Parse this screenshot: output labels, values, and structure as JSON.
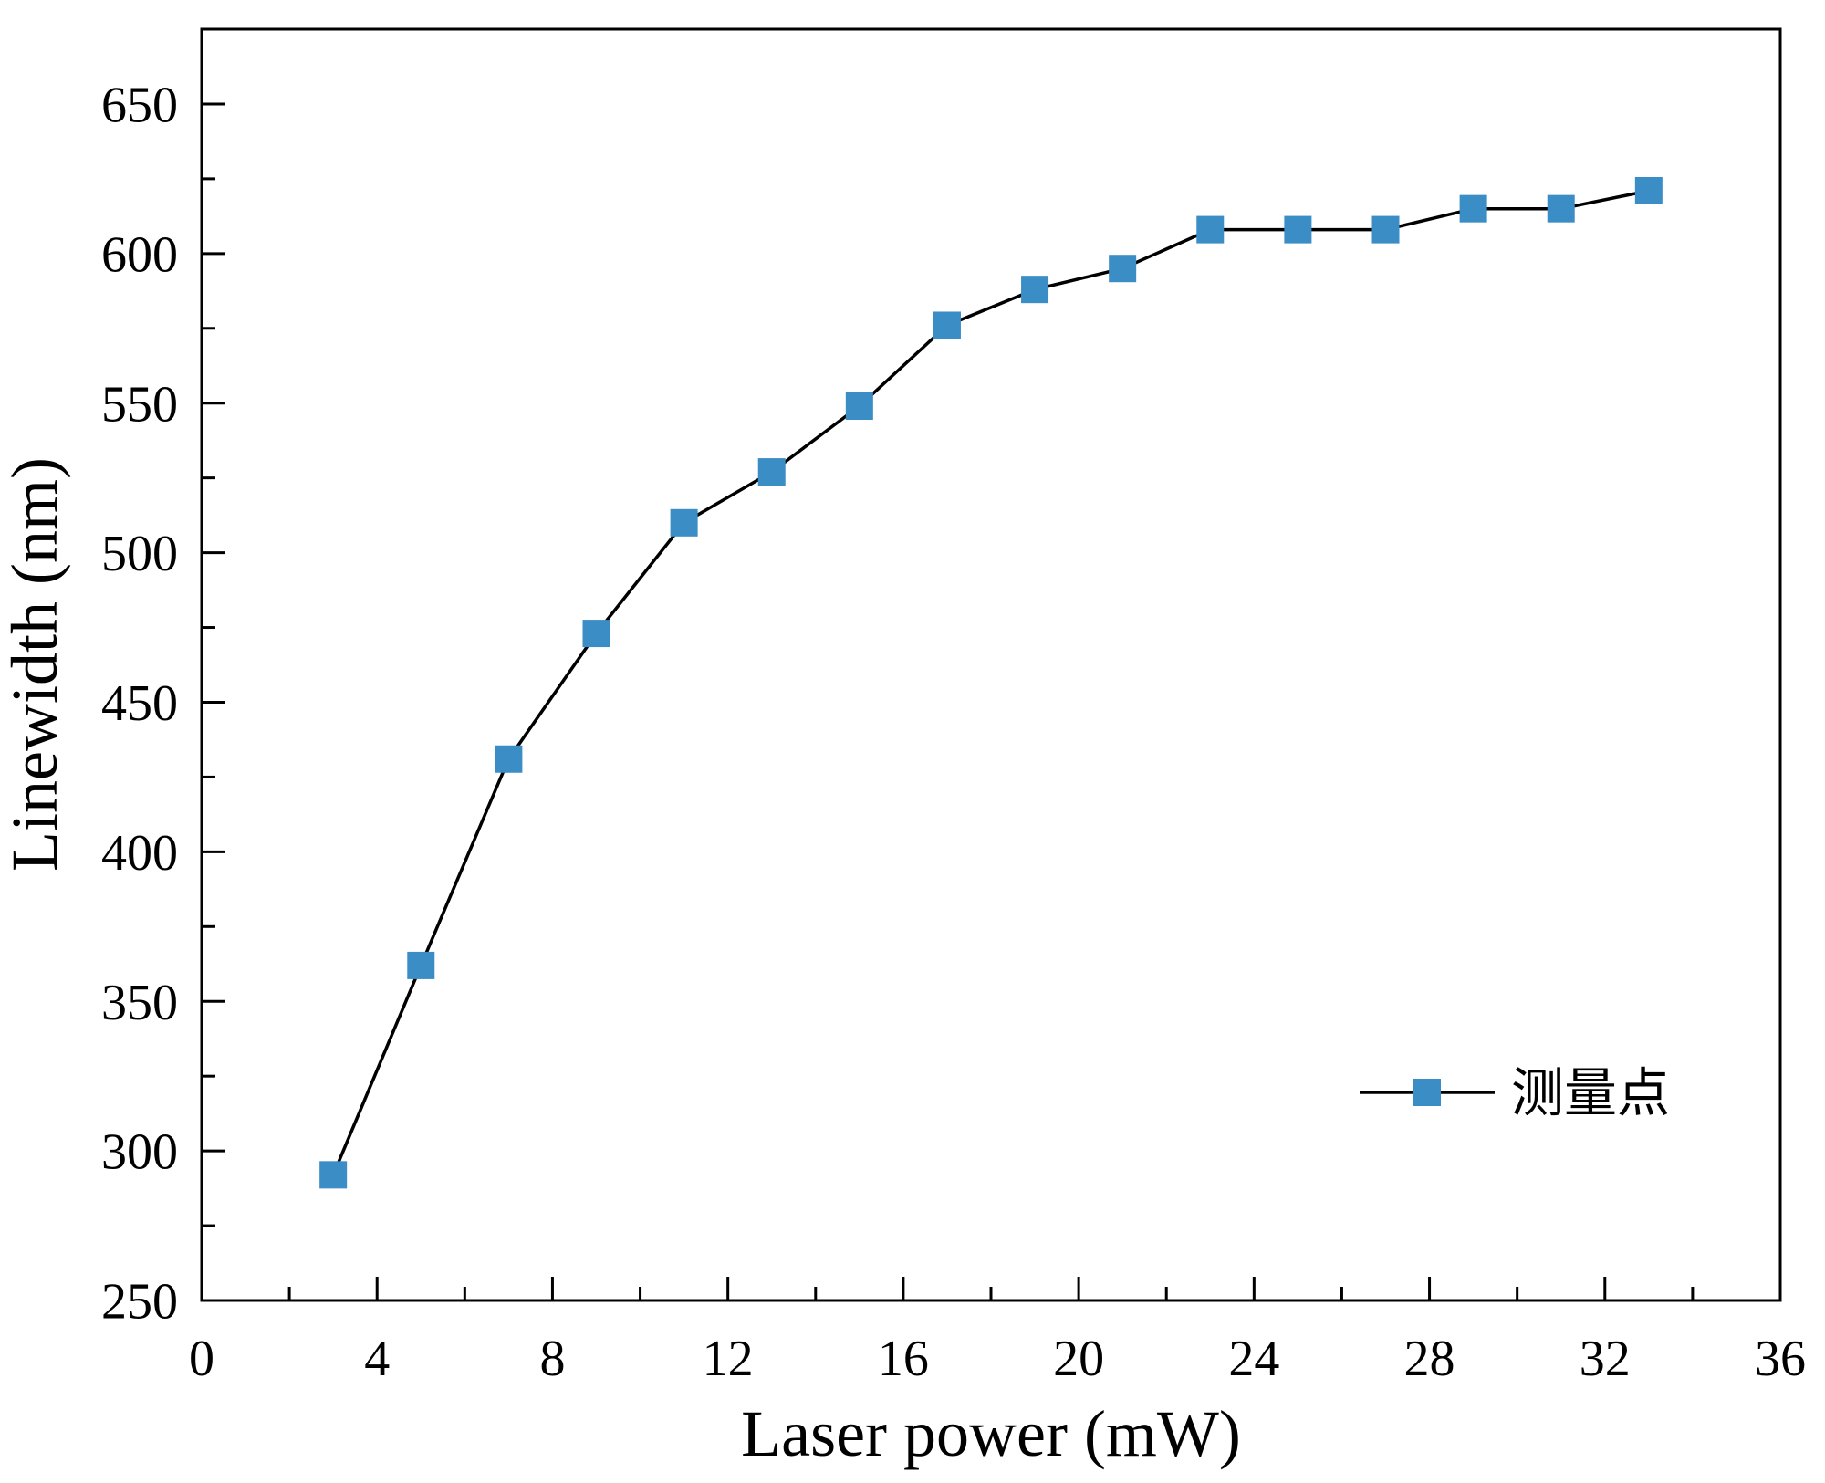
{
  "chart_data": {
    "type": "line",
    "title": "",
    "xlabel": "Laser power (mW)",
    "ylabel": "Linewidth (nm)",
    "xlim": [
      0,
      36
    ],
    "ylim": [
      250,
      675
    ],
    "xticks": [
      0,
      4,
      8,
      12,
      16,
      20,
      24,
      28,
      32,
      36
    ],
    "xminor_step": 2,
    "yticks": [
      250,
      300,
      350,
      400,
      450,
      500,
      550,
      600,
      650
    ],
    "yminor_step": 25,
    "grid": false,
    "legend_position": "lower-right",
    "series": [
      {
        "name": "测量点",
        "x": [
          3,
          5,
          7,
          9,
          11,
          13,
          15,
          17,
          19,
          21,
          23,
          25,
          27,
          29,
          31,
          33
        ],
        "y": [
          292,
          362,
          431,
          473,
          510,
          527,
          549,
          576,
          588,
          595,
          608,
          608,
          608,
          615,
          615,
          621
        ],
        "marker_color": "#3a8dc5",
        "line_color": "#000000"
      }
    ]
  }
}
